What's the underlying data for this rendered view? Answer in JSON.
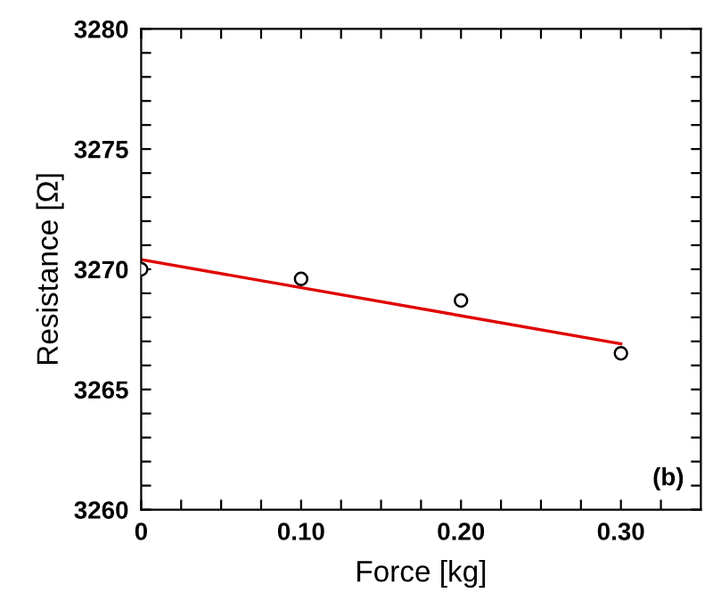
{
  "chart_data": {
    "type": "scatter",
    "xlabel": "Force [kg]",
    "ylabel": "Resistance [Ω]",
    "xlim": [
      0,
      0.35
    ],
    "ylim": [
      3260,
      3280
    ],
    "xticks": [
      {
        "value": 0,
        "label": "0"
      },
      {
        "value": 0.025,
        "label": null
      },
      {
        "value": 0.05,
        "label": null
      },
      {
        "value": 0.075,
        "label": null
      },
      {
        "value": 0.1,
        "label": "0.10"
      },
      {
        "value": 0.125,
        "label": null
      },
      {
        "value": 0.15,
        "label": null
      },
      {
        "value": 0.175,
        "label": null
      },
      {
        "value": 0.2,
        "label": "0.20"
      },
      {
        "value": 0.225,
        "label": null
      },
      {
        "value": 0.25,
        "label": null
      },
      {
        "value": 0.275,
        "label": null
      },
      {
        "value": 0.3,
        "label": "0.30"
      },
      {
        "value": 0.325,
        "label": null
      }
    ],
    "yticks": [
      3260,
      {
        "value": 3261,
        "label": null
      },
      {
        "value": 3262,
        "label": null
      },
      {
        "value": 3263,
        "label": null
      },
      {
        "value": 3264,
        "label": null
      },
      3265,
      {
        "value": 3266,
        "label": null
      },
      {
        "value": 3267,
        "label": null
      },
      {
        "value": 3268,
        "label": null
      },
      {
        "value": 3269,
        "label": null
      },
      3270,
      {
        "value": 3271,
        "label": null
      },
      {
        "value": 3272,
        "label": null
      },
      {
        "value": 3273,
        "label": null
      },
      {
        "value": 3274,
        "label": null
      },
      3275,
      {
        "value": 3276,
        "label": null
      },
      {
        "value": 3277,
        "label": null
      },
      {
        "value": 3278,
        "label": null
      },
      {
        "value": 3279,
        "label": null
      },
      3280
    ],
    "grid": false,
    "legend": false,
    "series": [
      {
        "color": "#000000",
        "marker": "circle",
        "x": [
          0,
          0.1,
          0.2,
          0.3
        ],
        "values": [
          3270.0,
          3269.6,
          3268.7,
          3266.5
        ]
      },
      {
        "type": "line",
        "color": "#e00000",
        "line_style": "solid",
        "x": [
          0,
          0.3
        ],
        "values": [
          3270.4,
          3266.9
        ]
      }
    ],
    "annotations": [
      "(b)"
    ]
  }
}
